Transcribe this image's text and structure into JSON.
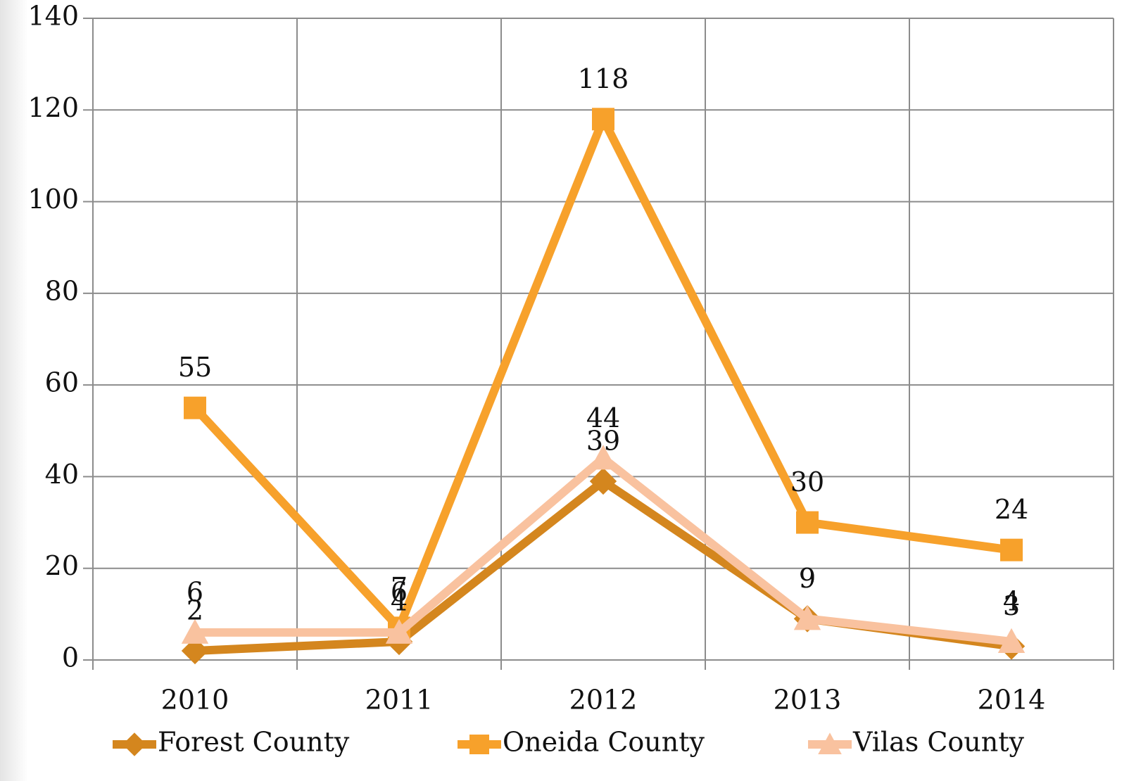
{
  "chart_data": {
    "type": "line",
    "categories": [
      "2010",
      "2011",
      "2012",
      "2013",
      "2014"
    ],
    "series": [
      {
        "name": "Forest County",
        "color": "#d4861e",
        "marker": "diamond",
        "values": [
          2,
          4,
          39,
          9,
          3
        ]
      },
      {
        "name": "Oneida County",
        "color": "#f7a12b",
        "marker": "square",
        "values": [
          55,
          7,
          118,
          30,
          24
        ]
      },
      {
        "name": "Vilas County",
        "color": "#f9c29f",
        "marker": "triangle",
        "values": [
          6,
          6,
          44,
          9,
          4
        ]
      }
    ],
    "ylim": [
      0,
      140
    ],
    "yticks": [
      0,
      20,
      40,
      60,
      80,
      100,
      120,
      140
    ],
    "grid": true,
    "legend": "bottom",
    "data_labels": true
  }
}
